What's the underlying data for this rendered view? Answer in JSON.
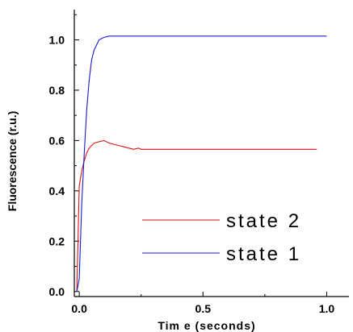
{
  "chart_data": {
    "type": "line",
    "title": "",
    "xlabel": "Tim e (seconds)",
    "ylabel": "Fluorescence (r.u.)",
    "xlim": [
      -0.02,
      1.09
    ],
    "ylim": [
      -0.02,
      1.12
    ],
    "xticks": [
      0.0,
      0.5,
      1.0
    ],
    "xtick_labels": [
      "0.0",
      "0.5",
      "1.0"
    ],
    "yticks": [
      0.0,
      0.2,
      0.4,
      0.6,
      0.8,
      1.0
    ],
    "ytick_labels": [
      "0.0",
      "0.2",
      "0.4",
      "0.6",
      "0.8",
      "1.0"
    ],
    "grid": false,
    "legend_position": "bottom-right",
    "series": [
      {
        "name": "state 2",
        "color": "#dd1111",
        "x": [
          -0.01,
          0.0,
          0.01,
          0.02,
          0.03,
          0.04,
          0.05,
          0.06,
          0.08,
          0.1,
          0.12,
          0.14,
          0.16,
          0.18,
          0.2,
          0.22,
          0.24,
          0.25,
          0.3,
          0.5,
          0.7,
          0.96
        ],
        "y": [
          0.0,
          0.42,
          0.48,
          0.52,
          0.55,
          0.57,
          0.58,
          0.59,
          0.595,
          0.6,
          0.59,
          0.585,
          0.58,
          0.575,
          0.57,
          0.565,
          0.57,
          0.565,
          0.565,
          0.565,
          0.565,
          0.565
        ]
      },
      {
        "name": "state 1",
        "color": "#1a1acc",
        "x": [
          -0.01,
          0.0,
          0.01,
          0.02,
          0.03,
          0.04,
          0.05,
          0.06,
          0.07,
          0.08,
          0.1,
          0.12,
          0.14,
          0.2,
          0.5,
          1.0
        ],
        "y": [
          0.0,
          0.05,
          0.35,
          0.55,
          0.72,
          0.84,
          0.92,
          0.96,
          0.98,
          1.0,
          1.01,
          1.015,
          1.015,
          1.015,
          1.015,
          1.015
        ]
      }
    ]
  }
}
